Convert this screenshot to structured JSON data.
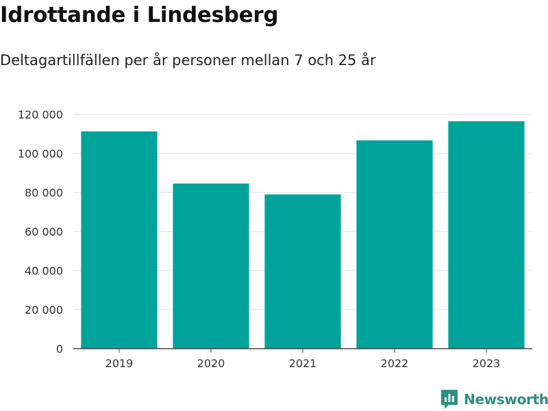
{
  "chart_data": {
    "type": "bar",
    "title": "Idrottande i Lindesberg",
    "subtitle": "Deltagartillfällen per år personer mellan 7 och 25 år",
    "xlabel": "",
    "ylabel": "",
    "categories": [
      "2019",
      "2020",
      "2021",
      "2022",
      "2023"
    ],
    "values": [
      111300,
      84600,
      79000,
      106700,
      116500
    ],
    "ylim": [
      0,
      120000
    ],
    "yticks": [
      0,
      20000,
      40000,
      60000,
      80000,
      100000,
      120000
    ],
    "ytick_labels": [
      "0",
      "20 000",
      "40 000",
      "60 000",
      "80 000",
      "100 000",
      "120 000"
    ],
    "grid": true,
    "bar_color": "#00a39a",
    "grid_color": "#dddddd"
  },
  "brand": {
    "name": "Newsworthy",
    "color": "#2d8f80"
  }
}
